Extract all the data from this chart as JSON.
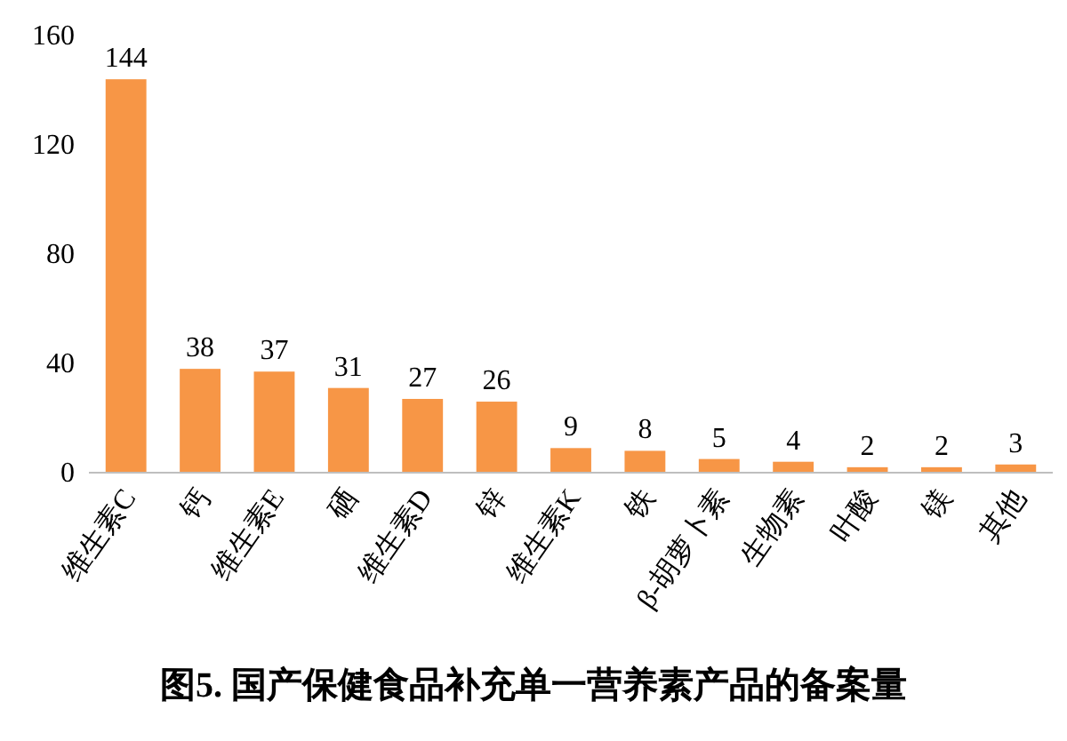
{
  "chart_data": {
    "type": "bar",
    "title": "图5. 国产保健食品补充单一营养素产品的备案量",
    "categories": [
      "维生素C",
      "钙",
      "维生素E",
      "硒",
      "维生素D",
      "锌",
      "维生素K",
      "铁",
      "β-胡萝卜素",
      "生物素",
      "叶酸",
      "镁",
      "其他"
    ],
    "values": [
      144,
      38,
      37,
      31,
      27,
      26,
      9,
      8,
      5,
      4,
      2,
      2,
      3
    ],
    "color": "#f79646",
    "ylim": [
      0,
      160
    ],
    "yticks": [
      0,
      40,
      80,
      120,
      160
    ],
    "data_labels": true
  }
}
